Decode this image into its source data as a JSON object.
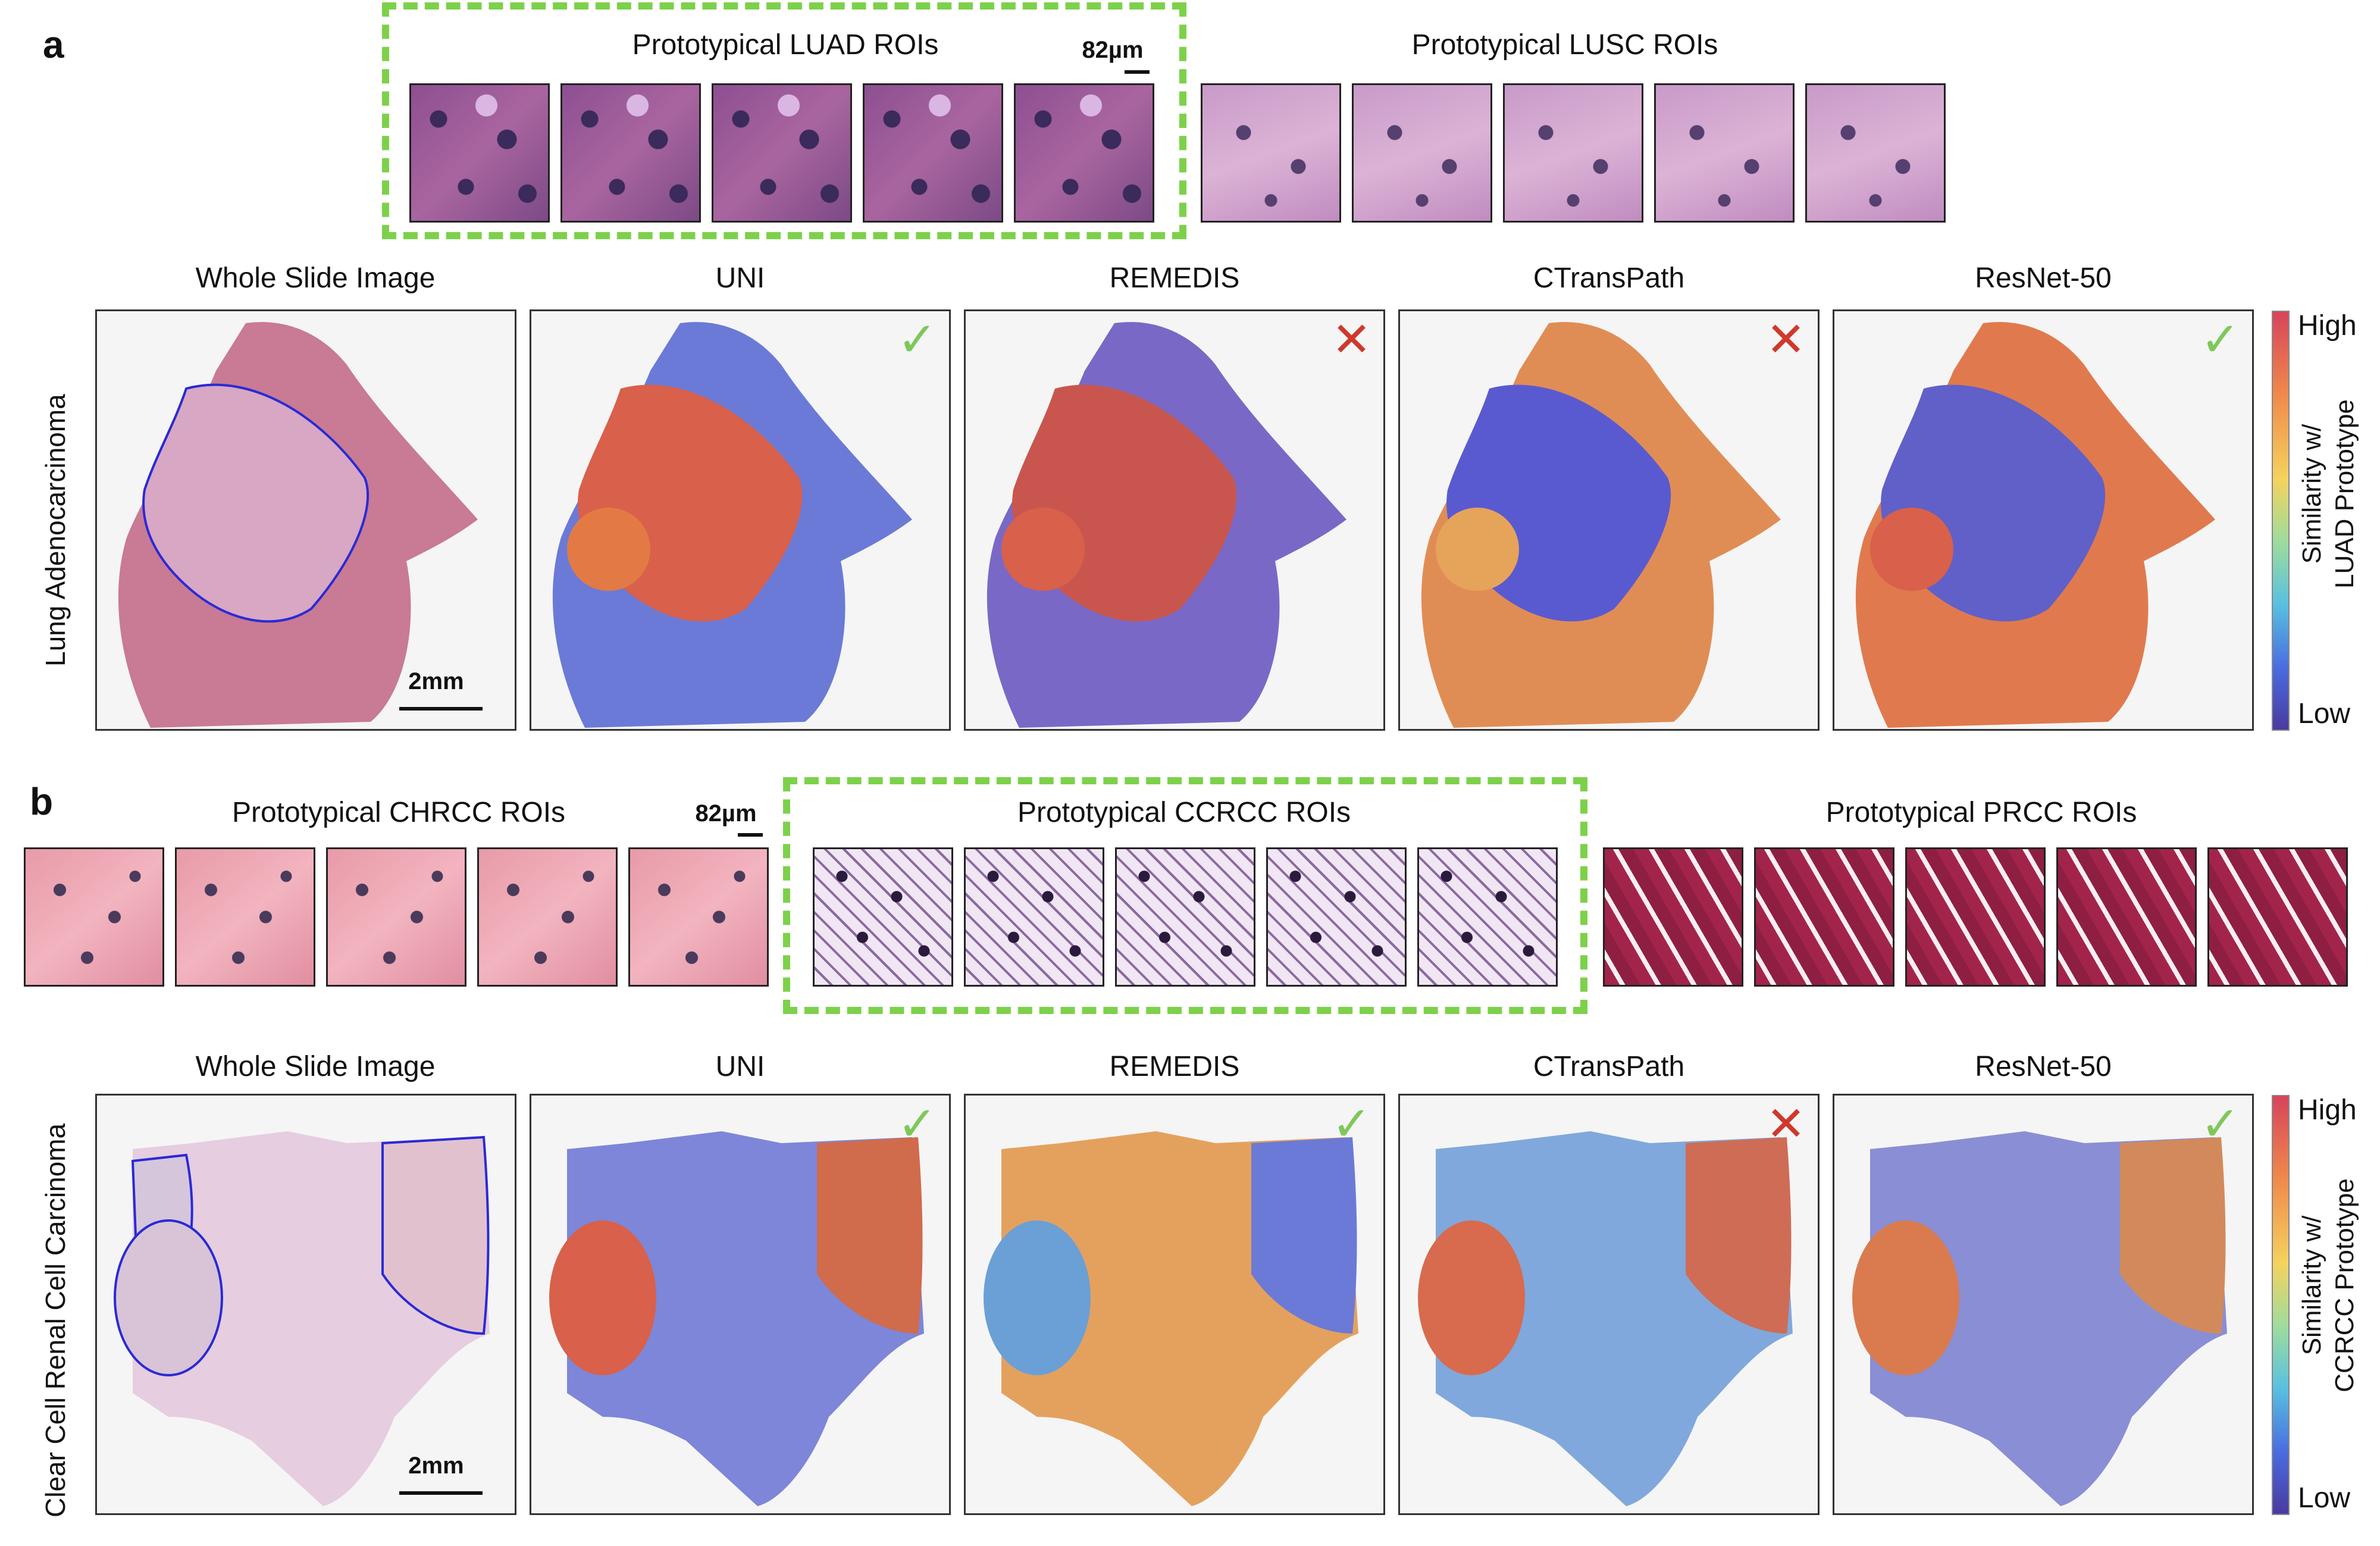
{
  "panel_a": {
    "letter": "a",
    "luad_title": "Prototypical LUAD ROIs",
    "lusc_title": "Prototypical LUSC ROIs",
    "scale_roi": "82µm",
    "columns": [
      "Whole Slide Image",
      "UNI",
      "REMEDIS",
      "CTransPath",
      "ResNet-50"
    ],
    "row_label": "Lung Adenocarcinoma",
    "scale_wsi": "2mm",
    "marks": [
      "check",
      "cross",
      "cross",
      "check"
    ],
    "colorbar": {
      "high": "High",
      "low": "Low",
      "title_line1": "Similarity w/",
      "title_line2": "LUAD Prototype"
    }
  },
  "panel_b": {
    "letter": "b",
    "chrcc_title": "Prototypical CHRCC ROIs",
    "ccrcc_title": "Prototypical CCRCC ROIs",
    "prcc_title": "Prototypical PRCC ROIs",
    "scale_roi": "82µm",
    "columns": [
      "Whole Slide Image",
      "UNI",
      "REMEDIS",
      "CTransPath",
      "ResNet-50"
    ],
    "row_label": "Clear Cell Renal Cell Carcinoma",
    "scale_wsi": "2mm",
    "marks": [
      "check",
      "check",
      "cross",
      "check"
    ],
    "colorbar": {
      "high": "High",
      "low": "Low",
      "title_line1": "Similarity w/",
      "title_line2": "CCRCC Prototype"
    }
  },
  "icons": {
    "check": "✓",
    "cross": "✕"
  },
  "colors": {
    "highlight_box": "#7dd14a",
    "check": "#7ec85a",
    "cross": "#d0382d",
    "annotation": "#2a2ad6"
  }
}
